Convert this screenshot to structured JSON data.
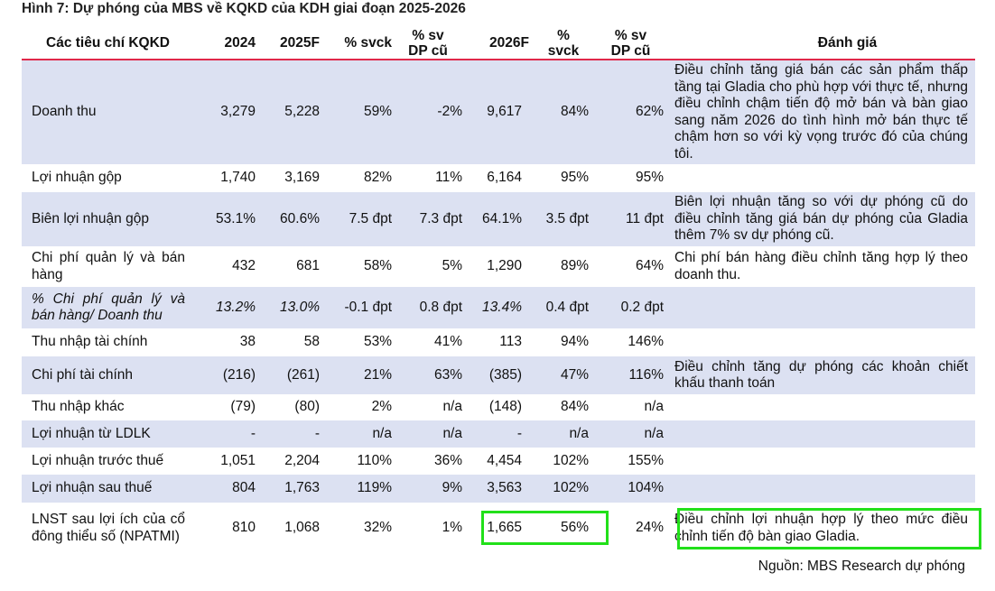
{
  "title": "Hình 7: Dự phóng của MBS về KQKD của KDH giai đoạn 2025-2026",
  "headers": [
    "Các tiêu chí KQKD",
    "2024",
    "2025F",
    "% svck",
    "% sv\nDP cũ",
    "2026F",
    "%\nsvck",
    "% sv\nDP cũ",
    "Đánh giá"
  ],
  "rows": [
    {
      "label": "Doanh thu",
      "values": [
        "3,279",
        "5,228",
        "59%",
        "-2%",
        "9,617",
        "84%",
        "62%"
      ],
      "comment": "Điều chỉnh tăng giá bán các sản phẩm thấp tầng tại Gladia cho phù hợp với thực tế, nhưng điều chỉnh chậm tiến độ mở bán và bàn giao sang năm 2026 do tình hình mở bán thực tế chậm hơn so với kỳ vọng trước đó của chúng tôi."
    },
    {
      "label": "Lợi nhuận gộp",
      "values": [
        "1,740",
        "3,169",
        "82%",
        "11%",
        "6,164",
        "95%",
        "95%"
      ],
      "comment": ""
    },
    {
      "label": "Biên lợi nhuận gộp",
      "values": [
        "53.1%",
        "60.6%",
        "7.5 đpt",
        "7.3 đpt",
        "64.1%",
        "3.5 đpt",
        "11 đpt"
      ],
      "comment": "Biên lợi nhuận tăng so với dự phóng cũ do điều chỉnh tăng giá bán dự phóng của Gladia thêm 7% sv dự phóng cũ."
    },
    {
      "label": "Chi phí quản lý và bán hàng",
      "values": [
        "432",
        "681",
        "58%",
        "5%",
        "1,290",
        "89%",
        "64%"
      ],
      "comment": "Chi phí bán hàng điều chỉnh tăng hợp lý theo doanh thu."
    },
    {
      "label": "% Chi phí quản lý và bán hàng/ Doanh thu",
      "values": [
        "13.2%",
        "13.0%",
        "-0.1 đpt",
        "0.8 đpt",
        "13.4%",
        "0.4 đpt",
        "0.2 đpt"
      ],
      "comment": ""
    },
    {
      "label": "Thu nhập tài chính",
      "values": [
        "38",
        "58",
        "53%",
        "41%",
        "113",
        "94%",
        "146%"
      ],
      "comment": ""
    },
    {
      "label": "Chi phí tài chính",
      "values": [
        "(216)",
        "(261)",
        "21%",
        "63%",
        "(385)",
        "47%",
        "116%"
      ],
      "comment": "Điều chỉnh tăng dự phóng các khoản chiết khấu thanh toán"
    },
    {
      "label": "Thu nhập khác",
      "values": [
        "(79)",
        "(80)",
        "2%",
        "n/a",
        "(148)",
        "84%",
        "n/a"
      ],
      "comment": ""
    },
    {
      "label": "Lợi nhuận từ LDLK",
      "values": [
        "-",
        "-",
        "n/a",
        "n/a",
        "-",
        "n/a",
        "n/a"
      ],
      "comment": ""
    },
    {
      "label": "Lợi nhuận trước thuế",
      "values": [
        "1,051",
        "2,204",
        "110%",
        "36%",
        "4,454",
        "102%",
        "155%"
      ],
      "comment": ""
    },
    {
      "label": "Lợi nhuận sau thuế",
      "values": [
        "804",
        "1,763",
        "119%",
        "9%",
        "3,563",
        "102%",
        "104%"
      ],
      "comment": ""
    },
    {
      "label": "LNST sau lợi ích của cổ đông thiểu số (NPATMI)",
      "values": [
        "810",
        "1,068",
        "32%",
        "1%",
        "1,665",
        "56%",
        "24%"
      ],
      "comment": "Điều chỉnh lợi nhuận hợp lý theo mức điều chỉnh tiến độ bàn giao Gladia."
    }
  ],
  "source": "Nguồn: MBS Research dự phóng",
  "colors": {
    "shade": "#dce1f2",
    "header_rule": "#e0284a",
    "highlight": "#22e01a"
  }
}
